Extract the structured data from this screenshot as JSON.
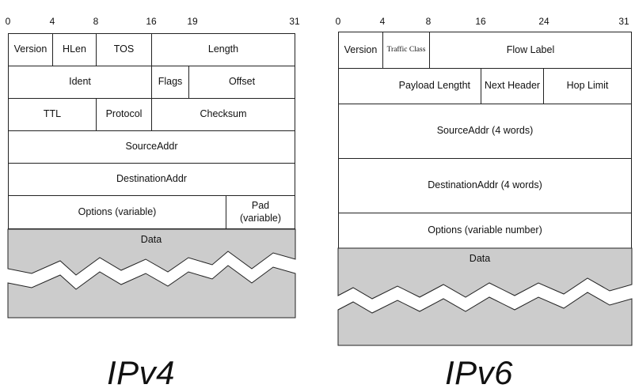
{
  "ipv4": {
    "title": "IPv4",
    "bit_labels": [
      "0",
      "4",
      "8",
      "16",
      "19",
      "31"
    ],
    "fields": {
      "version": "Version",
      "hlen": "HLen",
      "tos": "TOS",
      "length": "Length",
      "ident": "Ident",
      "flags": "Flags",
      "offset": "Offset",
      "ttl": "TTL",
      "protocol": "Protocol",
      "checksum": "Checksum",
      "source": "SourceAddr",
      "destination": "DestinationAddr",
      "options": "Options (variable)",
      "pad": "Pad\n(variable)"
    },
    "data_label": "Data",
    "data_fill": "#cccccc"
  },
  "ipv6": {
    "title": "IPv6",
    "bit_labels": [
      "0",
      "4",
      "8",
      "16",
      "24",
      "31"
    ],
    "fields": {
      "version": "Version",
      "traffic_class": "Traffic Class",
      "flow_label": "Flow Label",
      "payload_length": "Payload Lengtht",
      "next_header": "Next Header",
      "hop_limit": "Hop Limit",
      "source": "SourceAddr (4 words)",
      "destination": "DestinationAddr (4 words)",
      "options": "Options (variable number)"
    },
    "data_label": "Data",
    "data_fill": "#cccccc"
  }
}
